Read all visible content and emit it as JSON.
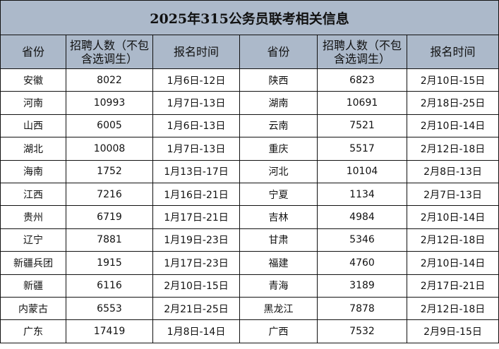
{
  "title": "2025年315公务员联考相关信息",
  "headers": [
    "省份",
    "招聘人数（不包含选调生）",
    "报名时间",
    "省份",
    "招聘人数（不包含选调生）",
    "报名时间"
  ],
  "rows": [
    [
      "安徽",
      "8022",
      "1月6日-12日",
      "陕西",
      "6823",
      "2月10日-15日"
    ],
    [
      "河南",
      "10993",
      "1月7日-13日",
      "湖南",
      "10691",
      "2月18日-25日"
    ],
    [
      "山西",
      "6005",
      "1月6日-13日",
      "云南",
      "7521",
      "2月10日-14日"
    ],
    [
      "湖北",
      "10008",
      "1月7日-13日",
      "重庆",
      "5517",
      "2月12日-18日"
    ],
    [
      "海南",
      "1752",
      "1月13日-17日",
      "河北",
      "10104",
      "2月8日-13日"
    ],
    [
      "江西",
      "7216",
      "1月16日-21日",
      "宁夏",
      "1134",
      "2月7日-13日"
    ],
    [
      "贵州",
      "6719",
      "1月17日-21日",
      "吉林",
      "4984",
      "2月10日-14日"
    ],
    [
      "辽宁",
      "7881",
      "1月19日-23日",
      "甘肃",
      "5346",
      "2月12日-18日"
    ],
    [
      "新疆兵团",
      "1915",
      "1月17日-23日",
      "福建",
      "4760",
      "2月10日-14日"
    ],
    [
      "新疆",
      "6116",
      "2月10日-15日",
      "青海",
      "3189",
      "2月17日-21日"
    ],
    [
      "内蒙古",
      "6553",
      "2月21日-25日",
      "黑龙江",
      "7878",
      "2月12日-18日"
    ],
    [
      "广东",
      "17419",
      "1月8日-14日",
      "广西",
      "7532",
      "2月9日-15日"
    ]
  ]
}
